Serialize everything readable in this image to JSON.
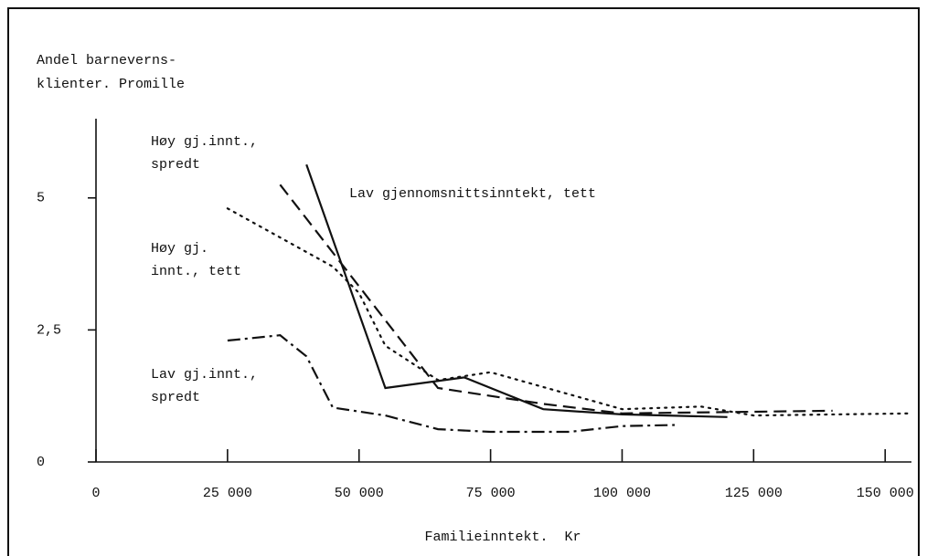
{
  "chart_data": {
    "type": "line",
    "y_label_lines": [
      "Andel barneverns-",
      "klienter. Promille"
    ],
    "x_label": "Familieinntekt.  Kr",
    "xlim": [
      0,
      155000
    ],
    "ylim": [
      0,
      6.5
    ],
    "xticks": [
      0,
      {
        "value": 25000,
        "label": "25 000"
      },
      {
        "value": 50000,
        "label": "50 000"
      },
      {
        "value": 75000,
        "label": "75 000"
      },
      {
        "value": 100000,
        "label": "100 000"
      },
      {
        "value": 125000,
        "label": "125 000"
      },
      {
        "value": 150000,
        "label": "150 000"
      }
    ],
    "yticks": [
      0,
      {
        "value": 2.5,
        "label": "2,5"
      },
      5
    ],
    "color": "#111111",
    "series": [
      {
        "name_lines": [
          "Lav gjennomsnittsinntekt, tett"
        ],
        "dash": "solid",
        "x": [
          40000,
          55000,
          70000,
          85000,
          100000,
          120000
        ],
        "values": [
          5.63,
          1.4,
          1.6,
          1.0,
          0.9,
          0.85
        ]
      },
      {
        "name_lines": [
          "Høy gj.innt.,",
          "spredt"
        ],
        "dash": "dashed",
        "x": [
          35000,
          65000,
          85000,
          100000,
          140000
        ],
        "values": [
          5.25,
          1.4,
          1.1,
          0.92,
          0.97
        ]
      },
      {
        "name_lines": [
          "Høy gj.",
          "innt., tett"
        ],
        "dash": "dotted",
        "x": [
          25000,
          45000,
          50000,
          55000,
          65000,
          75000,
          100000,
          115000,
          125000,
          155000
        ],
        "values": [
          4.8,
          3.7,
          3.2,
          2.2,
          1.55,
          1.7,
          1.0,
          1.05,
          0.88,
          0.92
        ]
      },
      {
        "name_lines": [
          "Lav gj.innt.,",
          "spredt"
        ],
        "dash": "dashdot",
        "x": [
          25000,
          35000,
          40000,
          45000,
          55000,
          65000,
          75000,
          90000,
          100000,
          110000
        ],
        "values": [
          2.3,
          2.4,
          2.0,
          1.03,
          0.88,
          0.62,
          0.57,
          0.57,
          0.68,
          0.7
        ]
      }
    ]
  }
}
